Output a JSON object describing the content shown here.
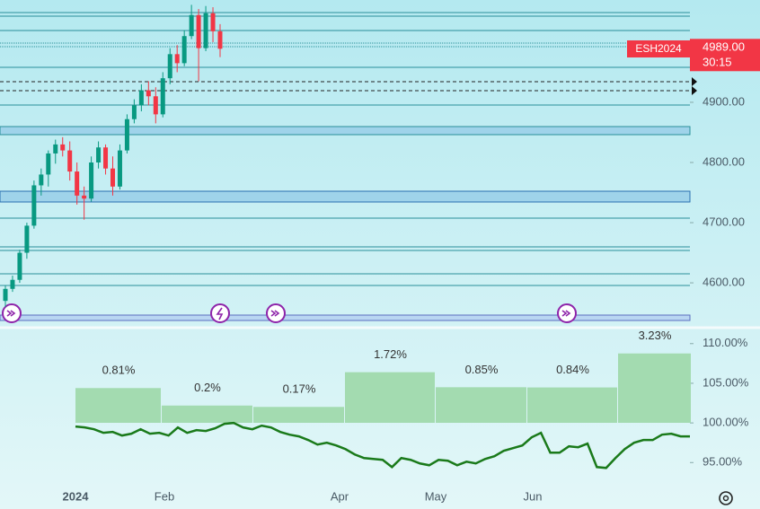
{
  "chart_data": [
    {
      "type": "candlestick",
      "open": [
        4570,
        4590,
        4605,
        4650,
        4695,
        4762,
        4780,
        4815,
        4830,
        4820,
        4785,
        4745,
        4740,
        4800,
        4825,
        4790,
        4760,
        4820,
        4872,
        4895,
        4920,
        4910,
        4880,
        4940,
        4980,
        4965,
        5010,
        5045,
        4990,
        5048,
        5018
      ],
      "high": [
        4595,
        4612,
        4655,
        4700,
        4770,
        4790,
        4820,
        4838,
        4842,
        4835,
        4800,
        4760,
        4810,
        4835,
        4830,
        4810,
        4830,
        4880,
        4905,
        4930,
        4935,
        4925,
        4950,
        4990,
        4995,
        5020,
        5062,
        5055,
        5060,
        5058,
        5030
      ],
      "low": [
        4560,
        4585,
        4600,
        4640,
        4690,
        4745,
        4760,
        4798,
        4810,
        4770,
        4730,
        4705,
        4735,
        4790,
        4780,
        4745,
        4755,
        4815,
        4865,
        4885,
        4895,
        4865,
        4875,
        4930,
        4950,
        4960,
        5005,
        4935,
        4985,
        5000,
        4975
      ],
      "close": [
        4590,
        4605,
        4650,
        4695,
        4762,
        4780,
        4815,
        4830,
        4820,
        4785,
        4745,
        4740,
        4800,
        4825,
        4790,
        4760,
        4820,
        4872,
        4895,
        4920,
        4910,
        4880,
        4940,
        4980,
        4965,
        5010,
        5045,
        4990,
        5048,
        5018,
        4989
      ],
      "up_color": "#089981",
      "down_color": "#f23645",
      "ylim": [
        4530,
        5070
      ],
      "yticks": [
        {
          "value": 4600,
          "label": "4600.00"
        },
        {
          "value": 4700,
          "label": "4700.00"
        },
        {
          "value": 4800,
          "label": "4800.00"
        },
        {
          "value": 4900,
          "label": "4900.00"
        }
      ],
      "symbol": "ESH2024",
      "last_price": {
        "value": 4989,
        "label": "4989.00"
      },
      "countdown": "30:15"
    },
    {
      "type": "bar-line",
      "bars": {
        "values": [
          0.81,
          0.2,
          0.17,
          1.72,
          0.85,
          0.84,
          3.23
        ],
        "value_labels": [
          "0.81%",
          "0.2%",
          "0.17%",
          "1.72%",
          "0.85%",
          "0.84%",
          "3.23%"
        ],
        "color": "#a3dbb0"
      },
      "series": [
        {
          "color": "#1a7a1a",
          "values": [
            99.55,
            99.43,
            99.2,
            98.75,
            98.86,
            98.41,
            98.64,
            99.2,
            98.64,
            98.75,
            98.41,
            99.43,
            98.75,
            99.09,
            98.98,
            99.32,
            99.89,
            100.0,
            99.43,
            99.2,
            99.66,
            99.43,
            98.86,
            98.52,
            98.3,
            97.84,
            97.27,
            97.5,
            97.16,
            96.7,
            96.02,
            95.57,
            95.45,
            95.34,
            94.43,
            95.57,
            95.34,
            94.89,
            94.66,
            95.34,
            95.23,
            94.66,
            95.11,
            94.89,
            95.45,
            95.8,
            96.48,
            96.82,
            97.16,
            98.18,
            98.75,
            96.25,
            96.25,
            97.05,
            96.93,
            97.39,
            94.43,
            94.32,
            95.57,
            96.7,
            97.5,
            97.84,
            97.84,
            98.52,
            98.64,
            98.3,
            98.3
          ]
        }
      ],
      "ylim": [
        92.2,
        111.9
      ],
      "yticks": [
        {
          "value": 95,
          "label": "95.00%"
        },
        {
          "value": 100,
          "label": "100.00%"
        },
        {
          "value": 105,
          "label": "105.00%"
        },
        {
          "value": 110,
          "label": "110.00%"
        }
      ],
      "x_axis_labels": [
        "2024",
        "Feb",
        "Apr",
        "May",
        "Jun"
      ]
    }
  ]
}
